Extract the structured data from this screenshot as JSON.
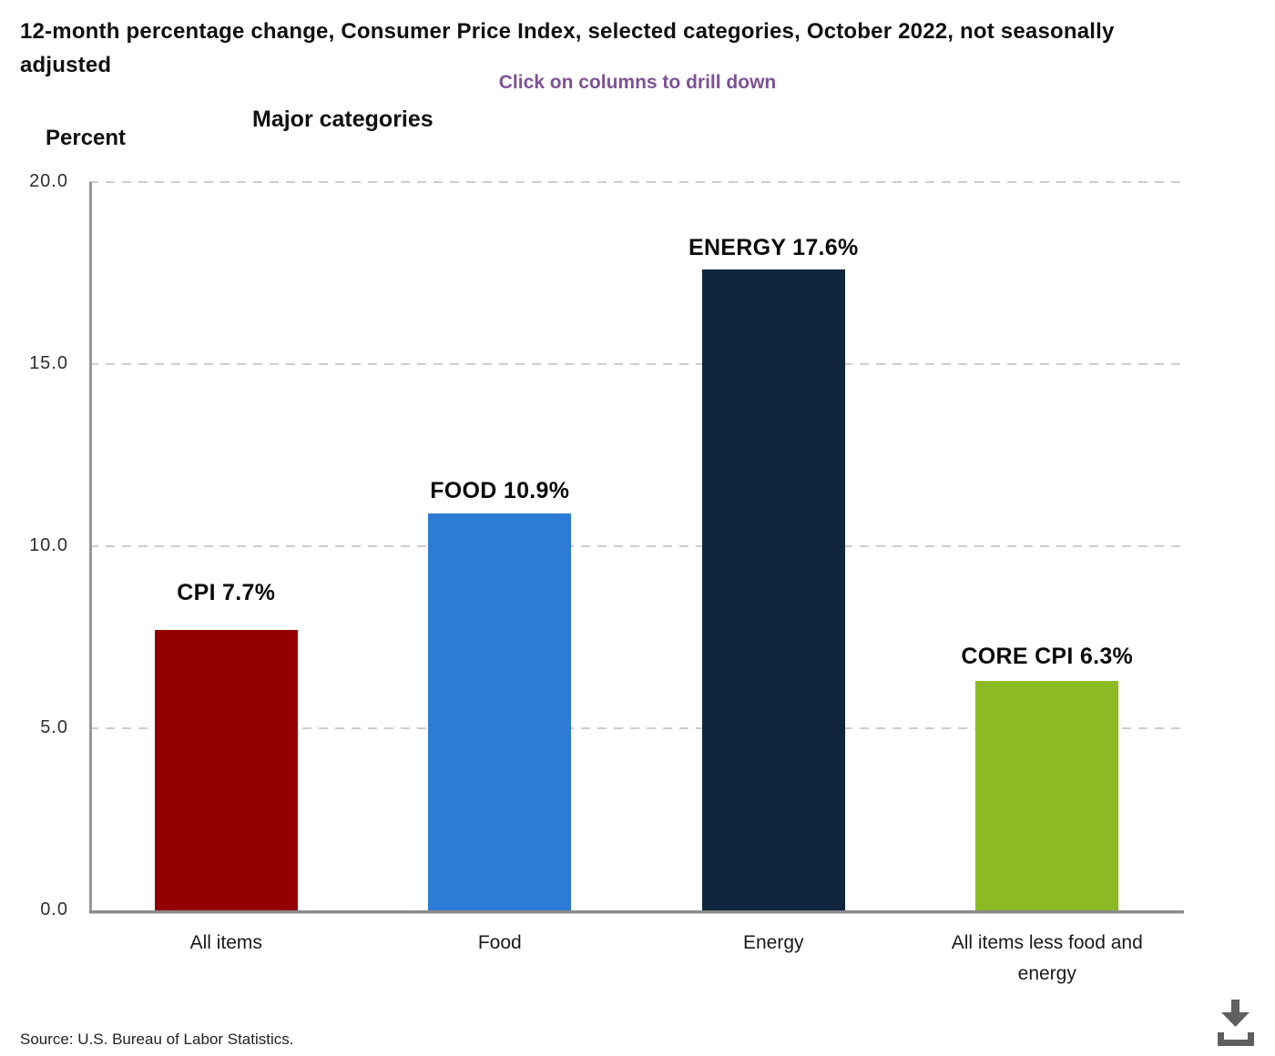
{
  "header": {
    "title": "12-month percentage change, Consumer Price Index, selected categories, October 2022, not seasonally adjusted",
    "drilldown_hint": "Click on columns to drill down",
    "chart_subtitle": "Major categories"
  },
  "chart_data": {
    "type": "bar",
    "title": "Major categories",
    "xlabel": "",
    "ylabel": "Percent",
    "ylim": [
      0,
      20
    ],
    "yticks": [
      0,
      5,
      10,
      15,
      20
    ],
    "ytick_labels": [
      "0.0",
      "5.0",
      "10.0",
      "15.0",
      "20.0"
    ],
    "grid": "horizontal-dashed",
    "legend": "none",
    "categories": [
      "All items",
      "Food",
      "Energy",
      "All items less food and energy"
    ],
    "values": [
      7.7,
      10.9,
      17.6,
      6.3
    ],
    "bar_labels": [
      "CPI 7.7%",
      "FOOD 10.9%",
      "ENERGY 17.6%",
      "CORE CPI 6.3%"
    ],
    "bar_colors": [
      "#940000",
      "#2e7bd6",
      "#10263c",
      "#8bba25"
    ]
  },
  "footer": {
    "source": "Source: U.S. Bureau of Labor Statistics."
  },
  "icons": {
    "download": "download-icon"
  },
  "colors": {
    "hint_purple": "#7d5295",
    "gridline": "#cdcdcd",
    "axis": "#979797",
    "baseline": "#8a8a8a",
    "icon_gray": "#5f5f5f",
    "text": "#111111"
  }
}
